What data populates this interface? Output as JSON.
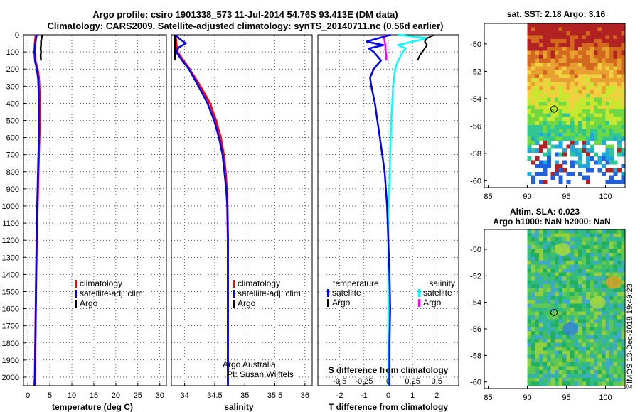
{
  "title": {
    "line1": "Argo profile: csiro 1901338_573 11-Jul-2014 54.76S 93.413E (DM data)",
    "line2": "Climatology: CARS2009. Satellite-adjusted climatology: synTS_20140711.nc (0.56d earlier)"
  },
  "colors": {
    "climatology": "#ff0000",
    "satellite": "#0000ff",
    "argo": "#000000",
    "sal_satellite": "#00ffff",
    "sal_argo": "#ff00ff"
  },
  "depth_axis": {
    "min": 0,
    "max": 2050,
    "ticks": [
      "0",
      "100",
      "200",
      "300",
      "400",
      "500",
      "600",
      "700",
      "800",
      "900",
      "1000",
      "1100",
      "1200",
      "1300",
      "1400",
      "1500",
      "1600",
      "1700",
      "1800",
      "1900",
      "2000"
    ]
  },
  "chart_data": [
    {
      "type": "line",
      "name": "temperature",
      "xlabel": "temperature (deg C)",
      "xlim": [
        -1,
        31.5
      ],
      "xticks": [
        0,
        5,
        10,
        15,
        20,
        25,
        30
      ],
      "xtick_labels": [
        "0",
        "5",
        "10",
        "15",
        "20",
        "25",
        "30"
      ],
      "ylim": [
        2050,
        0
      ],
      "legend": [
        "climatology",
        "satellite-adj. clim.",
        "Argo"
      ],
      "series": [
        {
          "name": "climatology",
          "depth": [
            0,
            50,
            100,
            150,
            200,
            250,
            300,
            400,
            500,
            600,
            700,
            800,
            900,
            1000,
            1200,
            1400,
            1600,
            1800,
            2000,
            2050
          ],
          "values": [
            1.8,
            1.6,
            1.5,
            1.7,
            2.2,
            2.5,
            2.6,
            2.7,
            2.7,
            2.6,
            2.5,
            2.4,
            2.3,
            2.2,
            2.0,
            1.9,
            1.8,
            1.7,
            1.6,
            1.5
          ]
        },
        {
          "name": "satellite-adj. clim.",
          "depth": [
            0,
            50,
            100,
            150,
            200,
            250,
            300,
            400,
            500,
            600,
            700,
            800,
            900,
            1000,
            1200,
            1400,
            1600,
            1800,
            2000,
            2050
          ],
          "values": [
            2.0,
            1.7,
            1.5,
            1.6,
            2.0,
            2.3,
            2.4,
            2.5,
            2.5,
            2.5,
            2.4,
            2.3,
            2.2,
            2.1,
            2.0,
            1.9,
            1.8,
            1.7,
            1.6,
            1.5
          ]
        },
        {
          "name": "Argo",
          "depth": [
            0,
            20,
            40,
            60,
            80,
            100,
            120,
            150
          ],
          "values": [
            3.2,
            3.1,
            3.0,
            3.0,
            2.9,
            3.0,
            2.9,
            3.0
          ]
        }
      ]
    },
    {
      "type": "line",
      "name": "salinity",
      "xlabel": "salinity",
      "xlim": [
        33.78,
        36.12
      ],
      "xticks": [
        34,
        34.5,
        35,
        35.5,
        36
      ],
      "xtick_labels": [
        "34",
        "34.5",
        "35",
        "35.5",
        "36"
      ],
      "ylim": [
        2050,
        0
      ],
      "legend": [
        "climatology",
        "satellite-adj. clim.",
        "Argo"
      ],
      "annotation": [
        "Argo Australia",
        "PI: Susan Wijffels"
      ],
      "series": [
        {
          "name": "climatology",
          "depth": [
            0,
            50,
            100,
            150,
            200,
            300,
            400,
            500,
            600,
            700,
            800,
            900,
            1000,
            1200,
            1400,
            1600,
            1800,
            2000,
            2050
          ],
          "values": [
            33.85,
            33.86,
            33.88,
            33.98,
            34.08,
            34.26,
            34.42,
            34.52,
            34.6,
            34.65,
            34.68,
            34.7,
            34.71,
            34.72,
            34.72,
            34.72,
            34.72,
            34.72,
            34.72
          ]
        },
        {
          "name": "satellite-adj. clim.",
          "depth": [
            0,
            25,
            50,
            75,
            100,
            150,
            200,
            300,
            400,
            500,
            600,
            700,
            800,
            900,
            1000,
            1200,
            1400,
            1600,
            1800,
            2000,
            2050
          ],
          "values": [
            33.85,
            33.92,
            34.02,
            33.9,
            33.86,
            33.96,
            34.07,
            34.23,
            34.38,
            34.49,
            34.57,
            34.63,
            34.66,
            34.69,
            34.71,
            34.72,
            34.72,
            34.72,
            34.72,
            34.72,
            34.72
          ]
        },
        {
          "name": "Argo",
          "depth": [
            0,
            30,
            60,
            90,
            120,
            150
          ],
          "values": [
            33.84,
            33.84,
            33.84,
            33.84,
            33.84,
            33.84
          ]
        }
      ]
    },
    {
      "type": "line",
      "name": "difference",
      "xlabel": "T difference from climatology",
      "xlim": [
        -2.9,
        2.9
      ],
      "xticks": [
        -2,
        -1,
        0,
        1,
        2
      ],
      "xtick_labels": [
        "-2",
        "-1",
        "0",
        "1",
        "2"
      ],
      "top_axis_label": "S difference from climatology",
      "top_ticks": [
        -0.5,
        -0.25,
        0,
        0.25,
        0.5
      ],
      "top_tick_labels": [
        "-0.5",
        "-0.25",
        "0",
        "0.25",
        "0.5"
      ],
      "ylim": [
        2050,
        0
      ],
      "legend_left_title": "temperature",
      "legend_right_title": "salinity",
      "legend_left": [
        "satellite",
        "Argo"
      ],
      "legend_right": [
        "satellite",
        "Argo"
      ],
      "series": [
        {
          "name": "T satellite",
          "depth": [
            0,
            20,
            40,
            60,
            80,
            100,
            150,
            200,
            250,
            300,
            400,
            500,
            600,
            700,
            800,
            900,
            1000,
            1200,
            1400,
            1600,
            1800,
            2000,
            2050
          ],
          "values": [
            0.1,
            -0.4,
            -0.9,
            -0.2,
            -0.8,
            -0.6,
            -0.3,
            -0.6,
            -0.75,
            -0.7,
            -0.55,
            -0.45,
            -0.35,
            -0.25,
            -0.15,
            -0.1,
            -0.05,
            0.0,
            0.05,
            0.08,
            0.05,
            0.05,
            0.05
          ]
        },
        {
          "name": "T Argo",
          "depth": [
            0,
            20,
            40,
            60,
            80,
            100,
            120,
            150
          ],
          "values": [
            1.9,
            1.6,
            1.5,
            1.6,
            1.5,
            1.4,
            1.3,
            1.2
          ]
        },
        {
          "name": "S satellite",
          "depth": [
            0,
            20,
            40,
            60,
            80,
            100,
            150,
            200,
            300,
            400,
            500,
            700,
            900,
            1000,
            1200,
            1400,
            1600,
            1800,
            2000,
            2050
          ],
          "values": [
            0.1,
            0.4,
            0.25,
            0.1,
            0.18,
            0.15,
            0.1,
            0.07,
            0.05,
            0.04,
            0.03,
            0.02,
            0.01,
            0.0,
            0.0,
            0.0,
            0.0,
            0.0,
            0.0,
            0.0
          ]
        },
        {
          "name": "S Argo",
          "depth": [
            0,
            30,
            60,
            90,
            120,
            150
          ],
          "values": [
            -0.05,
            -0.04,
            -0.03,
            -0.03,
            -0.02,
            -0.02
          ]
        }
      ]
    },
    {
      "type": "heatmap",
      "name": "sst_map",
      "title": "sat. SST: 2.18 Argo: 3.16",
      "xlim": [
        84.5,
        102.5
      ],
      "ylim": [
        -60.5,
        -48.5
      ],
      "xticks": [
        85,
        90,
        95,
        100
      ],
      "xtick_labels": [
        "85",
        "90",
        "95",
        "100"
      ],
      "yticks": [
        -50,
        -52,
        -54,
        -56,
        -58,
        -60
      ],
      "ytick_labels": [
        "-50",
        "-52",
        "-54",
        "-56",
        "-58",
        "-60"
      ],
      "data_extent": {
        "lon": [
          90,
          102.5
        ],
        "lat": [
          -60,
          -48.5
        ]
      },
      "argo_position": {
        "lon": 93.413,
        "lat": -54.76
      }
    },
    {
      "type": "heatmap",
      "name": "sla_map",
      "title": "Altim. SLA: 0.023",
      "subtitle": "Argo h1000: NaN h2000: NaN",
      "xlim": [
        84.5,
        102.5
      ],
      "ylim": [
        -60.5,
        -48.5
      ],
      "xticks": [
        85,
        90,
        95,
        100
      ],
      "xtick_labels": [
        "85",
        "90",
        "95",
        "100"
      ],
      "yticks": [
        -50,
        -52,
        -54,
        -56,
        -58,
        -60
      ],
      "ytick_labels": [
        "-50",
        "-52",
        "-54",
        "-56",
        "-58",
        "-60"
      ],
      "data_extent": {
        "lon": [
          90,
          102.5
        ],
        "lat": [
          -60,
          -48.5
        ]
      },
      "argo_position": {
        "lon": 93.413,
        "lat": -54.76
      }
    }
  ],
  "footer": {
    "stamp": "©IMOS 13-Dec-2018 19:49:23"
  }
}
